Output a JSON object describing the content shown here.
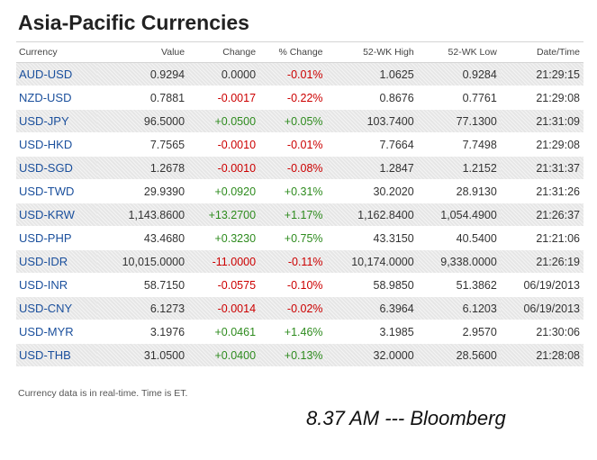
{
  "title": "Asia-Pacific Currencies",
  "colors": {
    "negative": "#cc0000",
    "positive": "#2e8b1e",
    "link": "#1a4f9c"
  },
  "table": {
    "headers": [
      "Currency",
      "Value",
      "Change",
      "% Change",
      "52-WK High",
      "52-WK Low",
      "Date/Time"
    ],
    "rows": [
      {
        "currency": "AUD-USD",
        "value": "0.9294",
        "change": "0.0000",
        "pct": "-0.01%",
        "high": "1.0625",
        "low": "0.9284",
        "time": "21:29:15"
      },
      {
        "currency": "NZD-USD",
        "value": "0.7881",
        "change": "-0.0017",
        "pct": "-0.22%",
        "high": "0.8676",
        "low": "0.7761",
        "time": "21:29:08"
      },
      {
        "currency": "USD-JPY",
        "value": "96.5000",
        "change": "+0.0500",
        "pct": "+0.05%",
        "high": "103.7400",
        "low": "77.1300",
        "time": "21:31:09"
      },
      {
        "currency": "USD-HKD",
        "value": "7.7565",
        "change": "-0.0010",
        "pct": "-0.01%",
        "high": "7.7664",
        "low": "7.7498",
        "time": "21:29:08"
      },
      {
        "currency": "USD-SGD",
        "value": "1.2678",
        "change": "-0.0010",
        "pct": "-0.08%",
        "high": "1.2847",
        "low": "1.2152",
        "time": "21:31:37"
      },
      {
        "currency": "USD-TWD",
        "value": "29.9390",
        "change": "+0.0920",
        "pct": "+0.31%",
        "high": "30.2020",
        "low": "28.9130",
        "time": "21:31:26"
      },
      {
        "currency": "USD-KRW",
        "value": "1,143.8600",
        "change": "+13.2700",
        "pct": "+1.17%",
        "high": "1,162.8400",
        "low": "1,054.4900",
        "time": "21:26:37"
      },
      {
        "currency": "USD-PHP",
        "value": "43.4680",
        "change": "+0.3230",
        "pct": "+0.75%",
        "high": "43.3150",
        "low": "40.5400",
        "time": "21:21:06"
      },
      {
        "currency": "USD-IDR",
        "value": "10,015.0000",
        "change": "-11.0000",
        "pct": "-0.11%",
        "high": "10,174.0000",
        "low": "9,338.0000",
        "time": "21:26:19"
      },
      {
        "currency": "USD-INR",
        "value": "58.7150",
        "change": "-0.0575",
        "pct": "-0.10%",
        "high": "58.9850",
        "low": "51.3862",
        "time": "06/19/2013"
      },
      {
        "currency": "USD-CNY",
        "value": "6.1273",
        "change": "-0.0014",
        "pct": "-0.02%",
        "high": "6.3964",
        "low": "6.1203",
        "time": "06/19/2013"
      },
      {
        "currency": "USD-MYR",
        "value": "3.1976",
        "change": "+0.0461",
        "pct": "+1.46%",
        "high": "3.1985",
        "low": "2.9570",
        "time": "21:30:06"
      },
      {
        "currency": "USD-THB",
        "value": "31.0500",
        "change": "+0.0400",
        "pct": "+0.13%",
        "high": "32.0000",
        "low": "28.5600",
        "time": "21:28:08"
      }
    ]
  },
  "note": "Currency data is in real-time. Time is ET.",
  "caption": "8.37 AM --- Bloomberg"
}
